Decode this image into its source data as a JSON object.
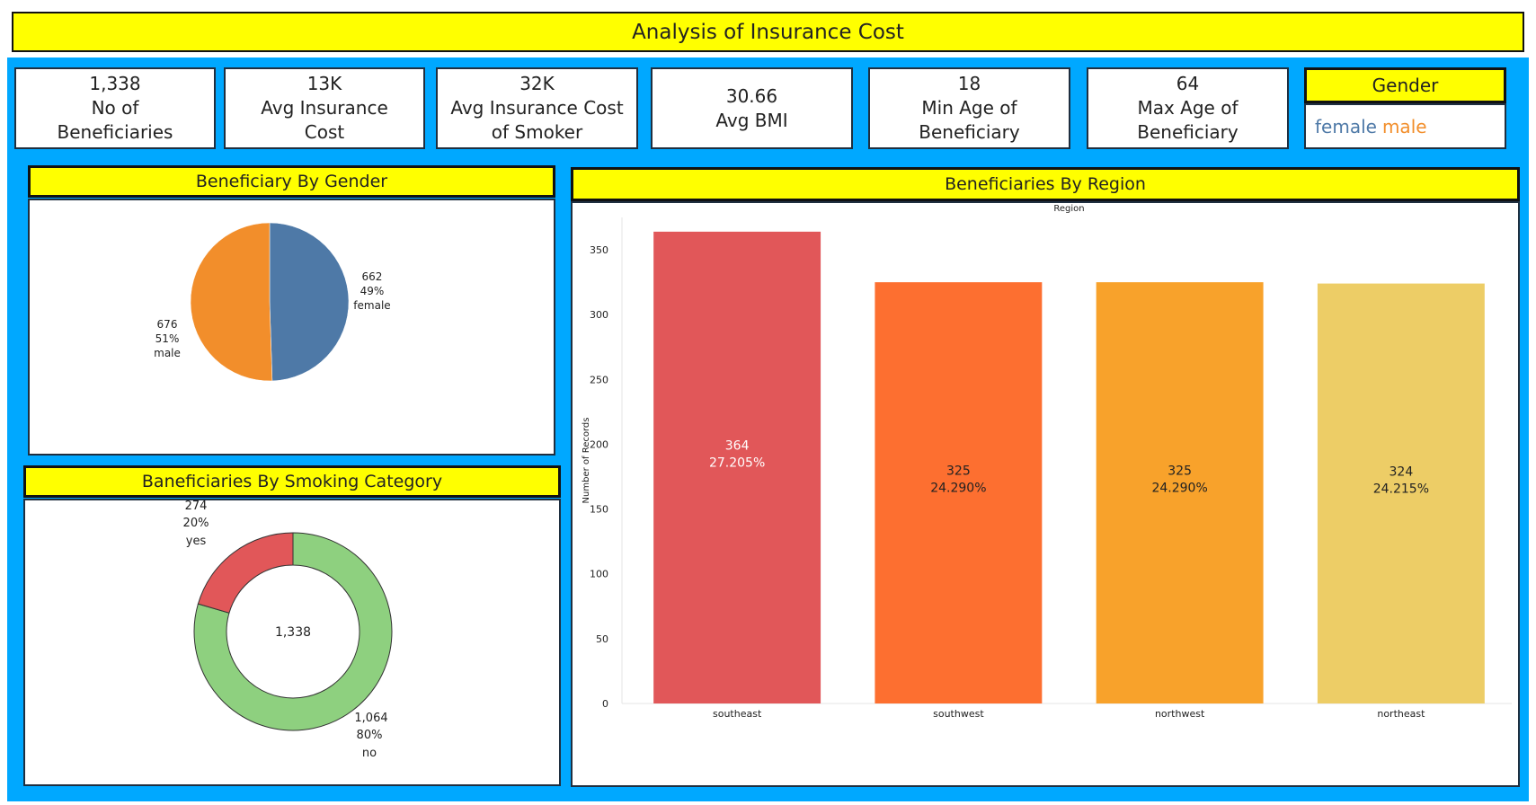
{
  "title": "Analysis of Insurance Cost",
  "kpis": [
    {
      "value": "1,338",
      "label": "No of\nBeneficiaries"
    },
    {
      "value": "13K",
      "label": "Avg Insurance\nCost"
    },
    {
      "value": "32K",
      "label": "Avg Insurance Cost\nof Smoker"
    },
    {
      "value": "30.66",
      "label": "Avg BMI"
    },
    {
      "value": "18",
      "label": "Min Age of\nBeneficiary"
    },
    {
      "value": "64",
      "label": "Max Age of\nBeneficiary"
    }
  ],
  "legend": {
    "title": "Gender",
    "items": [
      {
        "label": "female",
        "color": "#4e79a7"
      },
      {
        "label": "male",
        "color": "#f28e2b"
      }
    ]
  },
  "panels": {
    "gender": "Beneficiary By Gender",
    "smoking": "Baneficiaries By Smoking Category",
    "region": "Beneficiaries By Region"
  },
  "chart_data": [
    {
      "type": "pie",
      "title": "Beneficiary By Gender",
      "slices": [
        {
          "label": "female",
          "value": 662,
          "percent_label": "49%",
          "color": "#4e79a7"
        },
        {
          "label": "male",
          "value": 676,
          "percent_label": "51%",
          "color": "#f28e2b"
        }
      ]
    },
    {
      "type": "pie",
      "title": "Baneficiaries By Smoking Category",
      "donut": true,
      "center_label": "1,338",
      "slices": [
        {
          "label": "yes",
          "value": 274,
          "percent_label": "20%",
          "color": "#e15759"
        },
        {
          "label": "no",
          "value": 1064,
          "percent_label": "80%",
          "color": "#8ed07f"
        }
      ]
    },
    {
      "type": "bar",
      "title": "Beneficiaries By Region",
      "header": "Region",
      "ylabel": "Number of Records",
      "ylim": [
        0,
        375
      ],
      "yticks": [
        0,
        50,
        100,
        150,
        200,
        250,
        300,
        350
      ],
      "categories": [
        "southeast",
        "southwest",
        "northwest",
        "northeast"
      ],
      "values": [
        364,
        325,
        325,
        324
      ],
      "labels": [
        "27.205%",
        "24.290%",
        "24.290%",
        "24.215%"
      ],
      "colors": [
        "#e15759",
        "#fd6f30",
        "#f8a22b",
        "#edcd66"
      ],
      "label_colors": [
        "#ffffff",
        "#222222",
        "#222222",
        "#222222"
      ],
      "grid": false
    }
  ]
}
